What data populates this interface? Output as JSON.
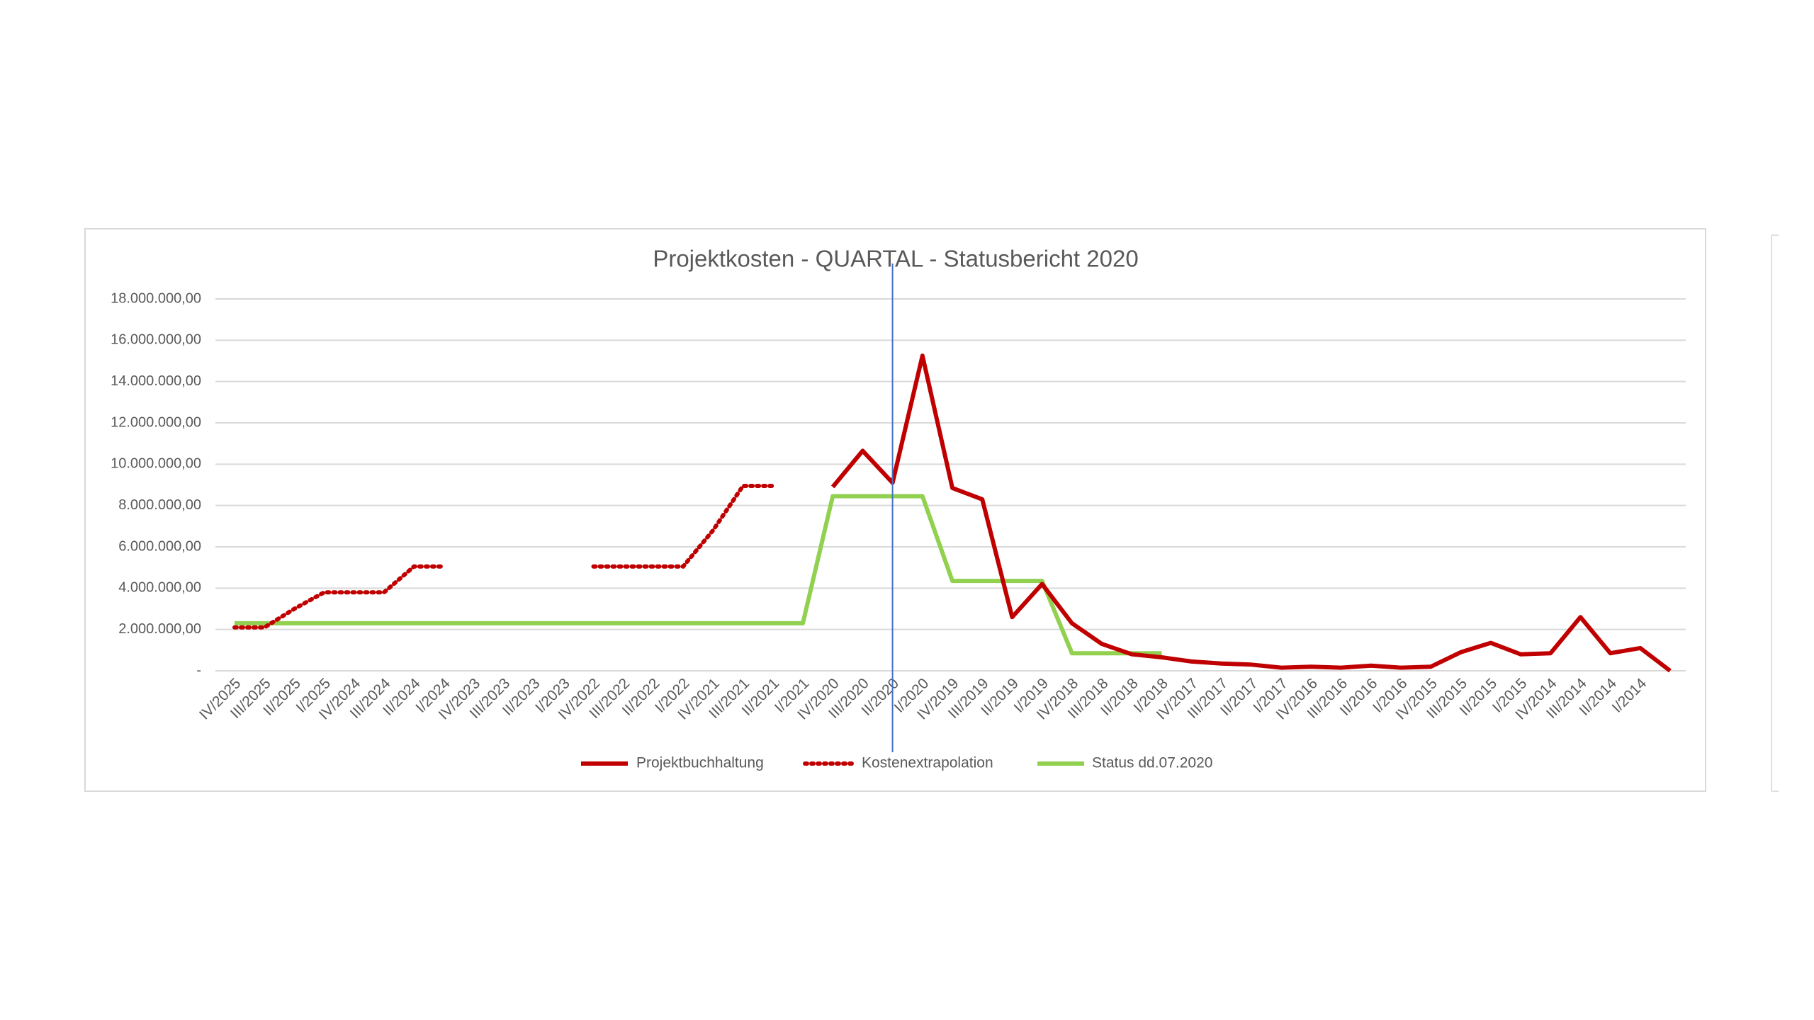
{
  "chart_data": {
    "type": "line",
    "title": "Projektkosten - QUARTAL - Statusbericht 2020",
    "categories": [
      "IV/2025",
      "III/2025",
      "II/2025",
      "I/2025",
      "IV/2024",
      "III/2024",
      "II/2024",
      "I/2024",
      "IV/2023",
      "III/2023",
      "II/2023",
      "I/2023",
      "IV/2022",
      "III/2022",
      "II/2022",
      "I/2022",
      "IV/2021",
      "III/2021",
      "II/2021",
      "I/2021",
      "IV/2020",
      "III/2020",
      "II/2020",
      "I/2020",
      "IV/2019",
      "III/2019",
      "II/2019",
      "I/2019",
      "IV/2018",
      "III/2018",
      "II/2018",
      "I/2018",
      "IV/2017",
      "III/2017",
      "II/2017",
      "I/2017",
      "IV/2016",
      "III/2016",
      "II/2016",
      "I/2016",
      "IV/2015",
      "III/2015",
      "II/2015",
      "I/2015",
      "IV/2014",
      "III/2014",
      "II/2014",
      "I/2014",
      null
    ],
    "series": [
      {
        "name": "Projektbuchhaltung",
        "color": "#c00000",
        "style": "solid",
        "values": [
          null,
          null,
          null,
          null,
          null,
          null,
          null,
          null,
          null,
          null,
          null,
          null,
          null,
          null,
          null,
          null,
          null,
          null,
          null,
          null,
          8900000,
          10650000,
          9100000,
          15250000,
          8850000,
          8300000,
          2600000,
          4200000,
          2300000,
          1300000,
          800000,
          650000,
          450000,
          350000,
          300000,
          150000,
          200000,
          150000,
          250000,
          150000,
          200000,
          900000,
          1350000,
          800000,
          850000,
          2600000,
          850000,
          1100000,
          0
        ]
      },
      {
        "name": "Kostenextrapolation",
        "color": "#c00000",
        "style": "dotted",
        "values": [
          2100000,
          2100000,
          3000000,
          3800000,
          3800000,
          3800000,
          5050000,
          5050000,
          null,
          null,
          null,
          null,
          5050000,
          5050000,
          5050000,
          5050000,
          6800000,
          8950000,
          8950000,
          null,
          null,
          null,
          null,
          null,
          null,
          null,
          null,
          null,
          null,
          null,
          null,
          null,
          null,
          null,
          null,
          null,
          null,
          null,
          null,
          null,
          null,
          null,
          null,
          null,
          null,
          null,
          null,
          null,
          null
        ]
      },
      {
        "name": "Status dd.07.2020",
        "color": "#92d050",
        "style": "solid",
        "values": [
          2300000,
          2300000,
          2300000,
          2300000,
          2300000,
          2300000,
          2300000,
          2300000,
          2300000,
          2300000,
          2300000,
          2300000,
          2300000,
          2300000,
          2300000,
          2300000,
          2300000,
          2300000,
          2300000,
          2300000,
          8450000,
          8450000,
          8450000,
          8450000,
          4350000,
          4350000,
          4350000,
          4350000,
          850000,
          850000,
          850000,
          850000,
          null,
          null,
          null,
          null,
          null,
          null,
          null,
          null,
          null,
          null,
          null,
          null,
          null,
          null,
          null,
          null,
          null
        ]
      }
    ],
    "ylim": [
      0,
      18000000
    ],
    "yticks": [
      {
        "value": 0,
        "label": "-"
      },
      {
        "value": 2000000,
        "label": "2.000.000,00"
      },
      {
        "value": 4000000,
        "label": "4.000.000,00"
      },
      {
        "value": 6000000,
        "label": "6.000.000,00"
      },
      {
        "value": 8000000,
        "label": "8.000.000,00"
      },
      {
        "value": 10000000,
        "label": "10.000.000,00"
      },
      {
        "value": 12000000,
        "label": "12.000.000,00"
      },
      {
        "value": 14000000,
        "label": "14.000.000,00"
      },
      {
        "value": 16000000,
        "label": "16.000.000,00"
      },
      {
        "value": 18000000,
        "label": "18.000.000,00"
      }
    ],
    "grid": true,
    "legend": "bottom",
    "reference_line": {
      "category_index": 22,
      "color": "#4472c4"
    }
  }
}
